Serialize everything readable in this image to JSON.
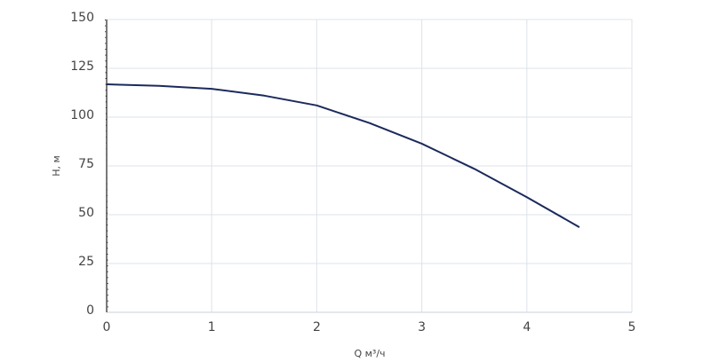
{
  "chart_data": {
    "type": "line",
    "x_label": "Q м³/ч",
    "y_label": "H, м",
    "series": [
      {
        "name": "H",
        "color": "#1b2a5c",
        "x": [
          0,
          0.5,
          1,
          1.5,
          2,
          2.5,
          3,
          3.5,
          4,
          4.5
        ],
        "values": [
          116.8,
          116,
          114.5,
          111,
          106,
          97,
          86.4,
          73.5,
          59,
          43.6
        ]
      }
    ],
    "xlim": [
      0,
      5
    ],
    "xticks": [
      0,
      1,
      2,
      3,
      4,
      5
    ],
    "ylim": [
      0,
      150
    ],
    "yticks": [
      0,
      25,
      50,
      75,
      100,
      125,
      150
    ],
    "grid": true
  }
}
